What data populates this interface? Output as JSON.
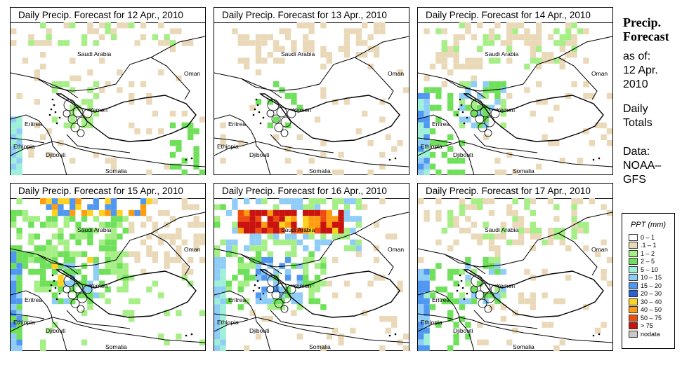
{
  "panels": [
    {
      "title": "Daily Precip. Forecast for  12 Apr., 2010",
      "level": 1
    },
    {
      "title": "Daily Precip. Forecast for  13 Apr., 2010",
      "level": 0
    },
    {
      "title": "Daily Precip. Forecast for  14 Apr., 2010",
      "level": 2
    },
    {
      "title": "Daily Precip. Forecast for  15 Apr., 2010",
      "level": 3
    },
    {
      "title": "Daily Precip. Forecast for  16 Apr., 2010",
      "level": 4
    },
    {
      "title": "Daily Precip. Forecast for  17 Apr., 2010",
      "level": 2
    }
  ],
  "map_labels": {
    "saudi": "Saudi Arabia",
    "oman": "Oman",
    "yemen": "Yemen",
    "eritrea": "Eritrea",
    "ethiopia": "Ethiopia",
    "djibouti": "Djibouti",
    "somalia": "Somalia"
  },
  "side": {
    "title_line1": "Precip.",
    "title_line2": "Forecast",
    "as_of_label": "as of:",
    "date_line1": "12 Apr.",
    "date_line2": "2010",
    "totals_line1": "Daily",
    "totals_line2": "Totals",
    "source_line1": "Data:",
    "source_line2": "NOAA–",
    "source_line3": "GFS"
  },
  "legend": {
    "title": "PPT (mm)",
    "items": [
      {
        "label": "0 – 1",
        "color": "#ffffff"
      },
      {
        "label": ".1 – 1",
        "color": "#ead9b8"
      },
      {
        "label": "1 – 2",
        "color": "#a6ee86"
      },
      {
        "label": "2 – 5",
        "color": "#6fe05a"
      },
      {
        "label": "5 – 10",
        "color": "#9ff0d8"
      },
      {
        "label": "10 – 15",
        "color": "#8fcdf7"
      },
      {
        "label": "15 – 20",
        "color": "#4f97f0"
      },
      {
        "label": "20 – 30",
        "color": "#2762d8"
      },
      {
        "label": "30 – 40",
        "color": "#ffd21f"
      },
      {
        "label": "40 – 50",
        "color": "#ff9d10"
      },
      {
        "label": "50 – 75",
        "color": "#ee4b10"
      },
      {
        "label": "> 75",
        "color": "#c8130f"
      },
      {
        "label": "nodata",
        "color": "#c9c9c9"
      }
    ]
  }
}
